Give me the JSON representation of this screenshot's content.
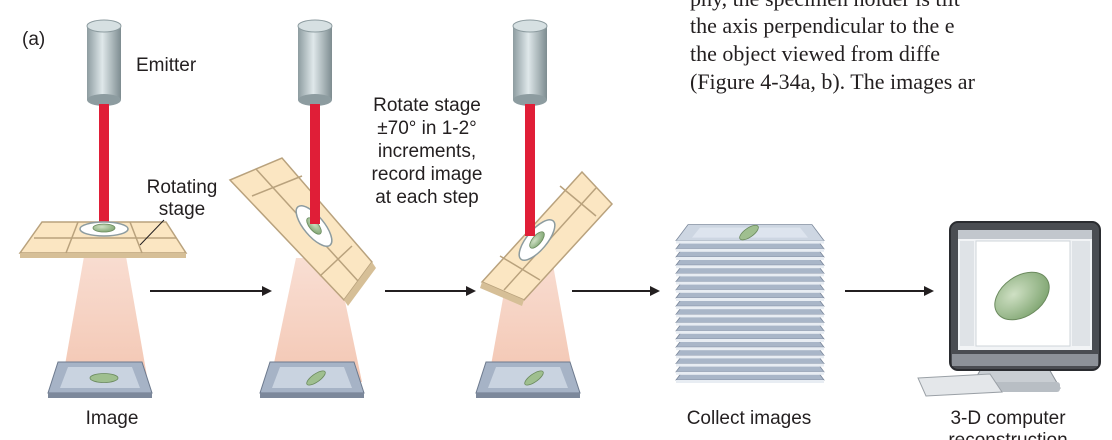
{
  "panel_label": "(a)",
  "labels": {
    "emitter": "Emitter",
    "rotating_stage": [
      "Rotating",
      "stage"
    ],
    "instruction": [
      "Rotate stage",
      "±70° in 1-2°",
      "increments,",
      "record image",
      "at each step"
    ],
    "image": "Image",
    "collect": "Collect images",
    "computer": [
      "3-D computer",
      "reconstruction"
    ]
  },
  "body_text": [
    "phy, the specimen holder is tilt",
    "the axis perpendicular to the e",
    "the object viewed from diffe",
    "(Figure 4-34a, b). The images ar"
  ],
  "colors": {
    "beam": "#e01e37",
    "emitter": "#bcc8ca",
    "stage": "#fbe6c2",
    "cone": "#f6d4c4",
    "specimen": "#9fbf8f",
    "plate": "#a6b3c6",
    "arrow": "#231f20"
  }
}
